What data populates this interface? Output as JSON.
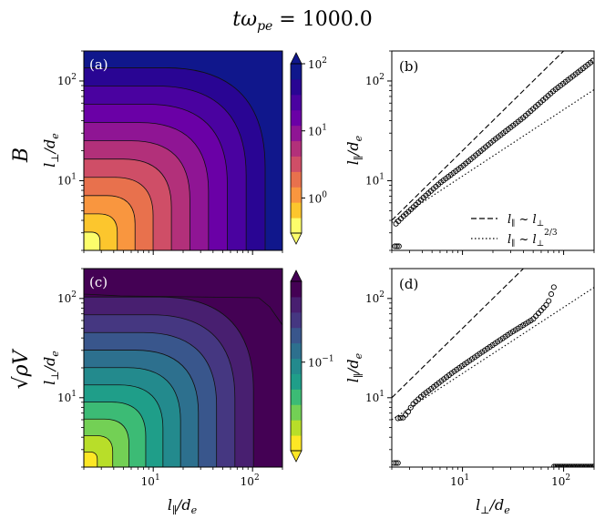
{
  "figure_title": "tω_pe = 1000.0",
  "title_parts": {
    "t": "t",
    "omega": "ω",
    "sub": "pe",
    "eq": " = ",
    "value": "1000.0"
  },
  "row_labels": {
    "top": "B",
    "bottom_sqrt": "√",
    "bottom_rest": "ρV"
  },
  "panel_letters": [
    "(a)",
    "(b)",
    "(c)",
    "(d)"
  ],
  "axis_labels": {
    "y_perp": {
      "l": "l",
      "sub": "⊥",
      "rest": "/d",
      "e": "e"
    },
    "y_par": {
      "l": "l",
      "sub": "∥",
      "rest": "/d",
      "e": "e"
    },
    "x_par": {
      "l": "l",
      "sub": "∥",
      "rest": "/d",
      "e": "e"
    },
    "x_perp": {
      "l": "l",
      "sub": "⊥",
      "rest": "/d",
      "e": "e"
    }
  },
  "legend": {
    "dashed": {
      "text": "l∥ ~ l⊥",
      "a": "l",
      "a_sub": "∥",
      "sim": " ~ ",
      "b": "l",
      "b_sub": "⊥"
    },
    "dotted": {
      "text": "l∥ ~ l⊥^2/3",
      "a": "l",
      "a_sub": "∥",
      "sim": " ~ ",
      "b": "l",
      "b_sub": "⊥",
      "b_sup": "2/3"
    }
  },
  "colors": {
    "plasma": [
      "#fcfd6b",
      "#fcc62d",
      "#f9963f",
      "#e8714d",
      "#cf4e67",
      "#b2307a",
      "#8f1594",
      "#6a00a6",
      "#4a02a0",
      "#290593",
      "#10178c"
    ],
    "viridis": [
      "#fde725",
      "#b8de29",
      "#73d055",
      "#3cbb75",
      "#1f9e89",
      "#238a8d",
      "#2d708e",
      "#39568c",
      "#453781",
      "#481f70",
      "#440154"
    ]
  },
  "chart_data": [
    {
      "panel": "(a)",
      "type": "heatmap",
      "variable": "B",
      "xlabel": "",
      "ylabel": "l⊥/de",
      "xscale": "log",
      "yscale": "log",
      "xlim": [
        2,
        200
      ],
      "ylim": [
        2,
        200
      ],
      "yticks": [
        {
          "v": 10,
          "base": "10",
          "exp": "1"
        },
        {
          "v": 100,
          "base": "10",
          "exp": "2"
        }
      ],
      "colorbar": {
        "scale": "log",
        "range": [
          0.3,
          100
        ],
        "extend": "both",
        "ticks": [
          {
            "v": 1,
            "base": "10",
            "exp": "0"
          },
          {
            "v": 10,
            "base": "10",
            "exp": "1"
          },
          {
            "v": 100,
            "base": "10",
            "exp": "2"
          }
        ]
      }
    },
    {
      "panel": "(b)",
      "type": "scatter",
      "xscale": "log",
      "yscale": "log",
      "xlabel": "",
      "ylabel": "l∥/de",
      "xlim": [
        2,
        200
      ],
      "ylim": [
        2,
        200
      ],
      "yticks": [
        {
          "v": 10,
          "base": "10",
          "exp": "1"
        },
        {
          "v": 100,
          "base": "10",
          "exp": "2"
        }
      ],
      "points": {
        "start_x": 2.2,
        "end_x": 195,
        "count": 80,
        "anchors": [
          [
            2.2,
            3.7
          ],
          [
            2.6,
            4.4
          ],
          [
            3,
            5
          ],
          [
            4,
            6.6
          ],
          [
            6,
            9.5
          ],
          [
            10,
            14
          ],
          [
            20,
            25
          ],
          [
            40,
            43
          ],
          [
            80,
            80
          ],
          [
            150,
            130
          ],
          [
            195,
            160
          ]
        ],
        "outliers": [
          [
            2.15,
            2.2
          ],
          [
            2.25,
            2.2
          ],
          [
            2.35,
            2.2
          ]
        ]
      },
      "reference_lines": [
        {
          "style": "dashed",
          "label": "l∥ ~ l⊥",
          "slope": 1,
          "through": [
            2,
            4
          ]
        },
        {
          "style": "dotted",
          "label": "l∥ ~ l⊥^2/3",
          "slope": 0.6667,
          "through": [
            2,
            3.8
          ]
        }
      ],
      "legend_position": "lower-right"
    },
    {
      "panel": "(c)",
      "type": "heatmap",
      "variable": "√ρV",
      "xlabel": "l∥/de",
      "ylabel": "l⊥/de",
      "xscale": "log",
      "yscale": "log",
      "xlim": [
        2,
        200
      ],
      "ylim": [
        2,
        200
      ],
      "xticks": [
        {
          "v": 10,
          "base": "10",
          "exp": "1"
        },
        {
          "v": 100,
          "base": "10",
          "exp": "2"
        }
      ],
      "yticks": [
        {
          "v": 10,
          "base": "10",
          "exp": "1"
        },
        {
          "v": 100,
          "base": "10",
          "exp": "2"
        }
      ],
      "colorbar": {
        "scale": "log",
        "range": [
          0.03,
          0.3
        ],
        "extend": "both",
        "ticks": [
          {
            "v": 0.1,
            "base": "10",
            "exp": "−1"
          }
        ]
      }
    },
    {
      "panel": "(d)",
      "type": "scatter",
      "xscale": "log",
      "yscale": "log",
      "xlabel": "l⊥/de",
      "ylabel": "l∥/de",
      "xlim": [
        2,
        200
      ],
      "ylim": [
        2,
        200
      ],
      "xticks": [
        {
          "v": 10,
          "base": "10",
          "exp": "1"
        },
        {
          "v": 100,
          "base": "10",
          "exp": "2"
        }
      ],
      "yticks": [
        {
          "v": 10,
          "base": "10",
          "exp": "1"
        },
        {
          "v": 100,
          "base": "10",
          "exp": "2"
        }
      ],
      "points": {
        "start_x": 2.3,
        "end_x": 80,
        "count": 62,
        "anchors": [
          [
            2.3,
            6.2
          ],
          [
            2.6,
            6.3
          ],
          [
            2.9,
            7.2
          ],
          [
            3.2,
            8.5
          ],
          [
            4,
            10.5
          ],
          [
            5,
            12.5
          ],
          [
            8,
            18
          ],
          [
            15,
            28
          ],
          [
            30,
            45
          ],
          [
            50,
            62
          ],
          [
            70,
            90
          ],
          [
            80,
            130
          ]
        ],
        "outliers": [
          [
            2.1,
            2.2
          ],
          [
            2.2,
            2.2
          ],
          [
            2.3,
            2.2
          ]
        ],
        "floor_from_x": 80,
        "floor_to_x": 200,
        "floor_y": 2
      },
      "reference_lines": [
        {
          "style": "dashed",
          "slope": 1,
          "through": [
            2,
            10
          ]
        },
        {
          "style": "dotted",
          "slope": 0.6667,
          "through": [
            2,
            6
          ]
        }
      ]
    }
  ]
}
